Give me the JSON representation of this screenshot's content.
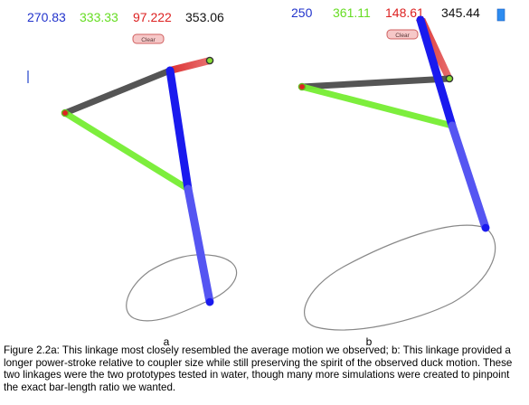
{
  "panels": [
    {
      "label": "a",
      "readouts": [
        {
          "value": "270.83",
          "color": "#2233cc"
        },
        {
          "value": "333.33",
          "color": "#66dd22"
        },
        {
          "value": "97.222",
          "color": "#dd2222"
        },
        {
          "value": "353.06",
          "color": "#111111"
        }
      ],
      "clear_label": "Clear"
    },
    {
      "label": "b",
      "readouts": [
        {
          "value": "250",
          "color": "#2233cc"
        },
        {
          "value": "361.11",
          "color": "#66dd22"
        },
        {
          "value": "148.61",
          "color": "#dd2222"
        },
        {
          "value": "345.44",
          "color": "#111111"
        }
      ],
      "clear_label": "Clear"
    }
  ],
  "caption": "Figure 2.2a: This linkage most closely resembled the average motion we observed; b: This linkage provided a longer power-stroke relative to coupler size while still preserving the spirit of the observed duck motion. These two linkages were the two prototypes tested in water, though many more simulations were created to pinpoint the exact bar-length ratio we wanted.",
  "colors": {
    "blue_bar": "#1a1aee",
    "green_bar": "#77ee33",
    "red_bar": "#dd3333",
    "gray_bar": "#555555",
    "path": "#888888",
    "clear_fill": "#f6c8c8",
    "clear_border": "#d06060"
  }
}
